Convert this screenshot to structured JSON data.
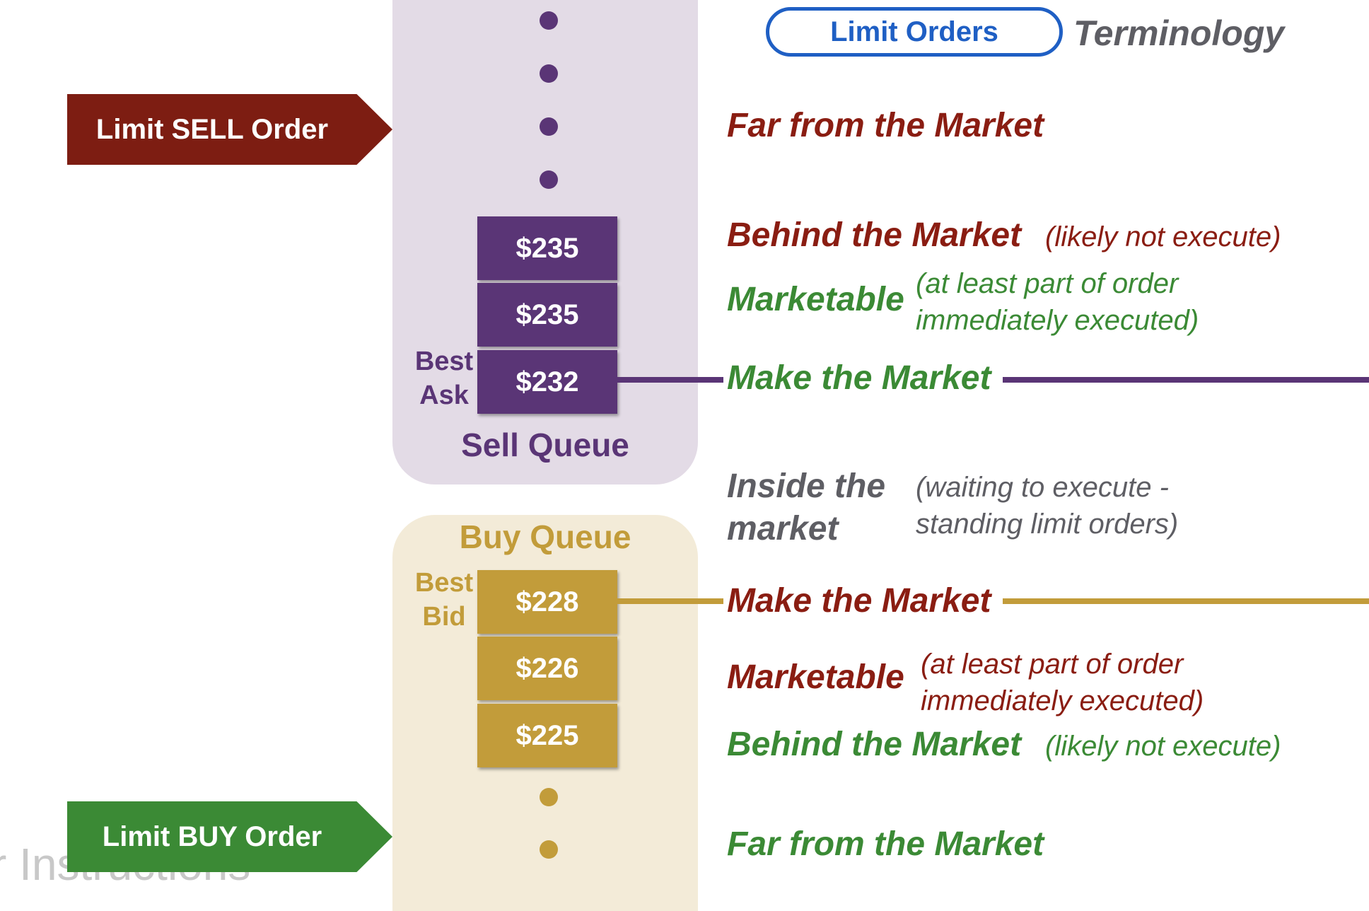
{
  "header": {
    "pill_label": "Limit Orders",
    "heading": "Terminology"
  },
  "orders": {
    "sell_label": "Limit SELL Order",
    "buy_label": "Limit BUY Order"
  },
  "sell_queue": {
    "title": "Sell Queue",
    "best_label_1": "Best",
    "best_label_2": "Ask",
    "prices": [
      "$235",
      "$235",
      "$232"
    ]
  },
  "buy_queue": {
    "title": "Buy Queue",
    "best_label_1": "Best",
    "best_label_2": "Bid",
    "prices": [
      "$228",
      "$226",
      "$225"
    ]
  },
  "terms": {
    "sell_far": "Far from the Market",
    "sell_behind": "Behind the Market",
    "sell_behind_note": "(likely not execute)",
    "sell_marketable": "Marketable",
    "sell_marketable_note_1": "(at least part of order",
    "sell_marketable_note_2": "immediately executed)",
    "sell_make": "Make the Market",
    "inside_1": "Inside the",
    "inside_2": "market",
    "inside_note_1": "(waiting to execute -",
    "inside_note_2": "standing limit orders)",
    "buy_make": "Make the Market",
    "buy_marketable": "Marketable",
    "buy_marketable_note_1": "(at least part of order",
    "buy_marketable_note_2": "immediately executed)",
    "buy_behind": "Behind the Market",
    "buy_behind_note": "(likely not execute)",
    "buy_far": "Far from the Market"
  },
  "watermark": "r Instructions",
  "colors": {
    "sell_purple": "#5a3576",
    "buy_gold": "#c29c3a",
    "sell_red": "#8a1d12",
    "buy_green": "#3b8a35",
    "pill_blue": "#1f5fc4"
  }
}
